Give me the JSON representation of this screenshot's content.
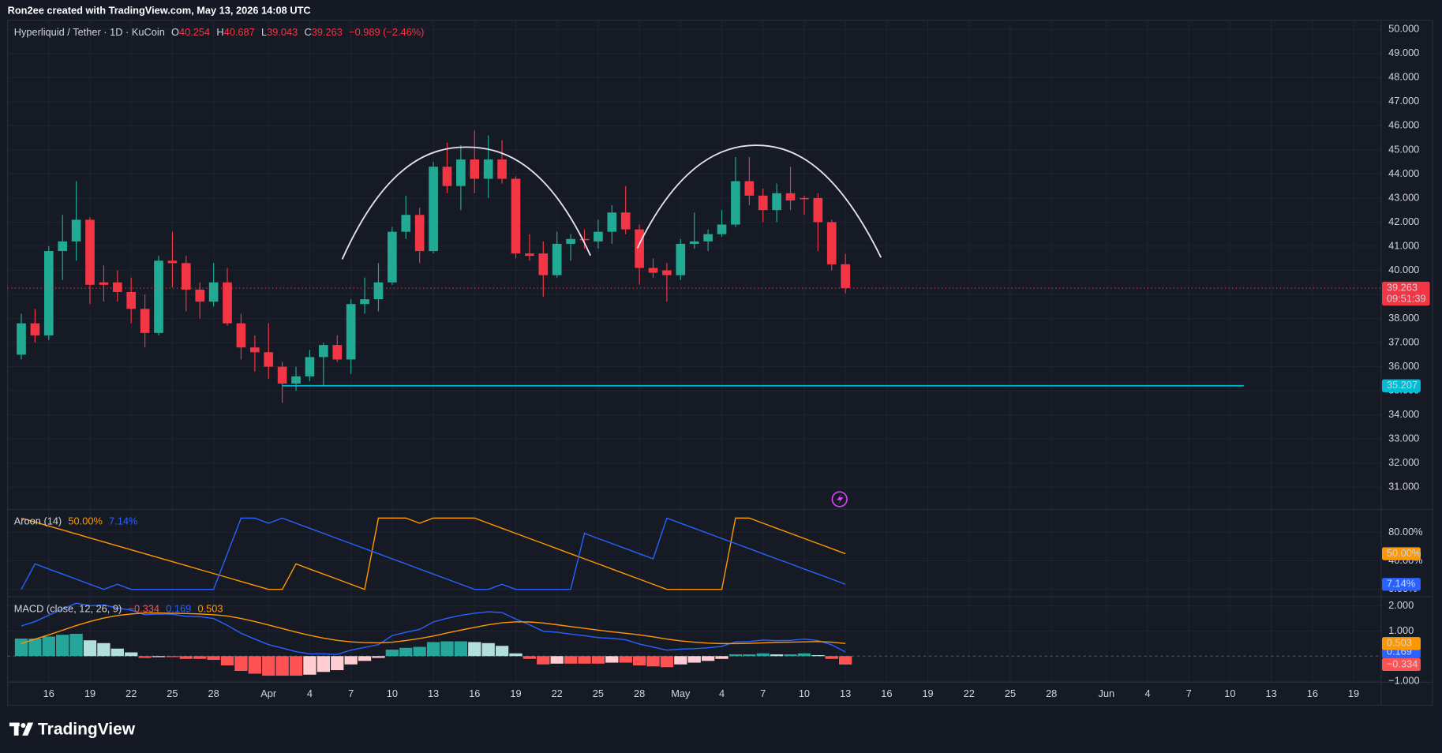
{
  "attribution": "Ron2ee created with TradingView.com, May 13, 2026 14:08 UTC",
  "brand": "TradingView",
  "chart_data": [
    {
      "type": "candlestick",
      "title": "Hyperliquid / Tether · 1D · KuCoin",
      "ohlc_labels": [
        "O",
        "H",
        "L",
        "C"
      ],
      "change": "−0.989 (−2.46%)",
      "countdown": "09:51:39",
      "up_color": "#22ab94",
      "down_color": "#f23645",
      "grid": true,
      "x": [
        "2026-03-14",
        "2026-03-15",
        "2026-03-16",
        "2026-03-17",
        "2026-03-18",
        "2026-03-19",
        "2026-03-20",
        "2026-03-21",
        "2026-03-22",
        "2026-03-23",
        "2026-03-24",
        "2026-03-25",
        "2026-03-26",
        "2026-03-27",
        "2026-03-28",
        "2026-03-29",
        "2026-03-30",
        "2026-03-31",
        "2026-04-01",
        "2026-04-02",
        "2026-04-03",
        "2026-04-04",
        "2026-04-05",
        "2026-04-06",
        "2026-04-07",
        "2026-04-08",
        "2026-04-09",
        "2026-04-10",
        "2026-04-11",
        "2026-04-12",
        "2026-04-13",
        "2026-04-14",
        "2026-04-15",
        "2026-04-16",
        "2026-04-17",
        "2026-04-18",
        "2026-04-19",
        "2026-04-20",
        "2026-04-21",
        "2026-04-22",
        "2026-04-23",
        "2026-04-24",
        "2026-04-25",
        "2026-04-26",
        "2026-04-27",
        "2026-04-28",
        "2026-04-29",
        "2026-04-30",
        "2026-05-01",
        "2026-05-02",
        "2026-05-03",
        "2026-05-04",
        "2026-05-05",
        "2026-05-06",
        "2026-05-07",
        "2026-05-08",
        "2026-05-09",
        "2026-05-10",
        "2026-05-11",
        "2026-05-12",
        "2026-05-13"
      ],
      "open": [
        36.5,
        37.8,
        37.3,
        40.8,
        41.2,
        42.1,
        39.5,
        39.5,
        39.1,
        38.4,
        37.4,
        40.4,
        40.3,
        39.2,
        38.7,
        39.5,
        37.8,
        36.8,
        36.6,
        36.0,
        35.3,
        35.6,
        36.4,
        36.9,
        36.3,
        38.6,
        38.8,
        39.5,
        41.6,
        42.3,
        40.8,
        44.3,
        43.5,
        44.6,
        43.8,
        44.6,
        43.8,
        40.7,
        40.7,
        39.8,
        41.1,
        41.3,
        41.2,
        41.6,
        42.4,
        41.7,
        40.1,
        40.0,
        39.8,
        41.1,
        41.2,
        41.5,
        41.9,
        43.7,
        43.1,
        42.5,
        43.2,
        43.0,
        43.0,
        42.0,
        40.254
      ],
      "high": [
        38.2,
        38.4,
        41.0,
        42.3,
        43.7,
        42.2,
        40.2,
        40.0,
        39.7,
        39.0,
        40.6,
        41.6,
        40.6,
        39.5,
        40.3,
        40.1,
        38.2,
        37.3,
        37.8,
        36.2,
        36.0,
        36.7,
        37.0,
        37.3,
        38.8,
        39.7,
        40.3,
        41.8,
        43.1,
        42.6,
        44.5,
        45.3,
        45.2,
        45.8,
        45.6,
        45.4,
        43.9,
        41.5,
        41.2,
        41.6,
        41.5,
        41.7,
        42.1,
        42.7,
        43.5,
        41.9,
        40.5,
        40.3,
        41.3,
        42.4,
        41.7,
        42.5,
        44.7,
        44.7,
        43.4,
        43.6,
        44.3,
        43.1,
        43.2,
        42.1,
        40.687
      ],
      "low": [
        36.3,
        37.0,
        37.1,
        39.6,
        40.4,
        38.6,
        38.7,
        38.7,
        37.8,
        36.8,
        37.3,
        39.3,
        38.3,
        38.0,
        38.5,
        37.7,
        36.3,
        35.8,
        35.5,
        34.5,
        35.0,
        35.4,
        35.2,
        36.2,
        35.7,
        38.2,
        38.3,
        39.4,
        41.3,
        40.3,
        40.7,
        43.2,
        42.5,
        43.2,
        43.0,
        43.6,
        40.5,
        40.4,
        38.9,
        39.7,
        40.4,
        40.9,
        40.9,
        41.1,
        41.5,
        39.4,
        39.7,
        38.7,
        39.6,
        40.9,
        40.8,
        41.4,
        41.8,
        42.7,
        42.0,
        42.0,
        42.5,
        42.3,
        40.8,
        40.0,
        39.043
      ],
      "close": [
        37.8,
        37.3,
        40.8,
        41.2,
        42.1,
        39.4,
        39.4,
        39.1,
        38.4,
        37.4,
        40.4,
        40.3,
        39.2,
        38.7,
        39.5,
        37.8,
        36.8,
        36.6,
        36.0,
        35.3,
        35.6,
        36.4,
        36.9,
        36.3,
        38.6,
        38.8,
        39.5,
        41.6,
        42.3,
        40.8,
        44.3,
        43.5,
        44.6,
        43.8,
        44.6,
        43.8,
        40.7,
        40.6,
        39.8,
        41.1,
        41.3,
        41.25,
        41.6,
        42.4,
        41.7,
        40.1,
        39.9,
        39.8,
        41.1,
        41.2,
        41.5,
        41.9,
        43.7,
        43.1,
        42.5,
        43.2,
        42.9,
        42.95,
        42.0,
        40.25,
        39.263
      ],
      "xlim": [
        "2026-03-13",
        "2026-06-21"
      ],
      "xticks": [
        {
          "value": "2026-03-16",
          "label": "16"
        },
        {
          "value": "2026-03-19",
          "label": "19"
        },
        {
          "value": "2026-03-22",
          "label": "22"
        },
        {
          "value": "2026-03-25",
          "label": "25"
        },
        {
          "value": "2026-03-28",
          "label": "28"
        },
        {
          "value": "2026-04-01",
          "label": "Apr"
        },
        {
          "value": "2026-04-04",
          "label": "4"
        },
        {
          "value": "2026-04-07",
          "label": "7"
        },
        {
          "value": "2026-04-10",
          "label": "10"
        },
        {
          "value": "2026-04-13",
          "label": "13"
        },
        {
          "value": "2026-04-16",
          "label": "16"
        },
        {
          "value": "2026-04-19",
          "label": "19"
        },
        {
          "value": "2026-04-22",
          "label": "22"
        },
        {
          "value": "2026-04-25",
          "label": "25"
        },
        {
          "value": "2026-04-28",
          "label": "28"
        },
        {
          "value": "2026-05-01",
          "label": "May"
        },
        {
          "value": "2026-05-04",
          "label": "4"
        },
        {
          "value": "2026-05-07",
          "label": "7"
        },
        {
          "value": "2026-05-10",
          "label": "10"
        },
        {
          "value": "2026-05-13",
          "label": "13"
        },
        {
          "value": "2026-05-16",
          "label": "16"
        },
        {
          "value": "2026-05-19",
          "label": "19"
        },
        {
          "value": "2026-05-22",
          "label": "22"
        },
        {
          "value": "2026-05-25",
          "label": "25"
        },
        {
          "value": "2026-05-28",
          "label": "28"
        },
        {
          "value": "2026-06-01",
          "label": "Jun"
        },
        {
          "value": "2026-06-04",
          "label": "4"
        },
        {
          "value": "2026-06-07",
          "label": "7"
        },
        {
          "value": "2026-06-10",
          "label": "10"
        },
        {
          "value": "2026-06-13",
          "label": "13"
        },
        {
          "value": "2026-06-16",
          "label": "16"
        },
        {
          "value": "2026-06-19",
          "label": "19"
        }
      ],
      "ylim": [
        30.08,
        50.38
      ],
      "yticks": [
        {
          "value": 31,
          "label": "31.000"
        },
        {
          "value": 32,
          "label": "32.000"
        },
        {
          "value": 33,
          "label": "33.000"
        },
        {
          "value": 34,
          "label": "34.000"
        },
        {
          "value": 35,
          "label": "35.000"
        },
        {
          "value": 36,
          "label": "36.000"
        },
        {
          "value": 37,
          "label": "37.000"
        },
        {
          "value": 38,
          "label": "38.000"
        },
        {
          "value": 39,
          "label": "39.000"
        },
        {
          "value": 40,
          "label": "40.000"
        },
        {
          "value": 41,
          "label": "41.000"
        },
        {
          "value": 42,
          "label": "42.000"
        },
        {
          "value": 43,
          "label": "43.000"
        },
        {
          "value": 44,
          "label": "44.000"
        },
        {
          "value": 45,
          "label": "45.000"
        },
        {
          "value": 46,
          "label": "46.000"
        },
        {
          "value": 47,
          "label": "47.000"
        },
        {
          "value": 48,
          "label": "48.000"
        },
        {
          "value": 49,
          "label": "49.000"
        },
        {
          "value": 50,
          "label": "50.000"
        }
      ],
      "hline": {
        "value": 35.207,
        "from": "2026-04-02",
        "to": "2026-06-11",
        "color": "#00bcd4"
      }
    },
    {
      "type": "line",
      "title": "Aroon (14)",
      "grid": true,
      "ylim": [
        -10.3,
        112.3
      ],
      "yticks": [
        {
          "value": 80,
          "label": "80.00%"
        },
        {
          "value": 40,
          "label": "40.00%"
        },
        {
          "value": 0,
          "label": "0.00%"
        }
      ],
      "series": [
        {
          "color": "#ff9800",
          "values": [
            100,
            94.44,
            88.89,
            83.33,
            77.78,
            72.22,
            66.67,
            61.11,
            55.56,
            50,
            44.44,
            38.89,
            33.33,
            27.78,
            22.22,
            16.67,
            11.11,
            5.56,
            0,
            0,
            35.71,
            28.57,
            21.43,
            14.29,
            7.14,
            0,
            100,
            100,
            100,
            92.86,
            100,
            100,
            100,
            100,
            92.86,
            85.71,
            78.57,
            71.43,
            64.29,
            57.14,
            50,
            42.86,
            35.71,
            28.57,
            21.43,
            14.29,
            7.14,
            0,
            0,
            0,
            0,
            0,
            100,
            100,
            92.86,
            85.71,
            78.57,
            71.43,
            64.29,
            57.14,
            50
          ],
          "value_labels": [
            null,
            null,
            null,
            null,
            null,
            null,
            null,
            null,
            null,
            null,
            null,
            null,
            null,
            null,
            null,
            null,
            null,
            null,
            null,
            null,
            null,
            null,
            null,
            null,
            null,
            null,
            null,
            null,
            null,
            null,
            null,
            null,
            null,
            null,
            null,
            null,
            null,
            null,
            null,
            null,
            null,
            null,
            null,
            null,
            null,
            null,
            null,
            null,
            null,
            null,
            null,
            null,
            null,
            null,
            null,
            null,
            null,
            null,
            null,
            null,
            "50.00%"
          ]
        },
        {
          "color": "#2962ff",
          "values": [
            0,
            35.71,
            28.57,
            21.43,
            14.29,
            7.14,
            0,
            7.14,
            0,
            0,
            0,
            0,
            0,
            0,
            0,
            50,
            100,
            100,
            92.86,
            100,
            92.86,
            85.71,
            78.57,
            71.43,
            64.29,
            57.14,
            50,
            42.86,
            35.71,
            28.57,
            21.43,
            14.29,
            7.14,
            0,
            0,
            7.14,
            0,
            0,
            0,
            0,
            0,
            78.57,
            71.43,
            64.29,
            57.14,
            50,
            42.86,
            100,
            92.86,
            85.71,
            78.57,
            71.43,
            64.29,
            57.14,
            50,
            42.86,
            35.71,
            28.57,
            21.43,
            14.29,
            7.14
          ],
          "value_labels": [
            null,
            null,
            null,
            null,
            null,
            null,
            null,
            null,
            null,
            null,
            null,
            null,
            null,
            null,
            null,
            null,
            null,
            null,
            null,
            null,
            null,
            null,
            null,
            null,
            null,
            null,
            null,
            null,
            null,
            null,
            null,
            null,
            null,
            null,
            null,
            null,
            null,
            null,
            null,
            null,
            null,
            null,
            null,
            null,
            null,
            null,
            null,
            null,
            null,
            null,
            null,
            null,
            null,
            null,
            null,
            null,
            null,
            null,
            null,
            null,
            "7.14%"
          ]
        }
      ]
    },
    {
      "type": "macd",
      "title": "MACD (close, 12, 26, 9)",
      "grid": true,
      "ylim": [
        -1.04,
        2.37
      ],
      "yticks": [
        {
          "value": 2,
          "label": "2.000"
        },
        {
          "value": 1,
          "label": "1.000"
        },
        {
          "value": -1,
          "label": "−1.000"
        }
      ],
      "series": [
        {
          "kind": "bar",
          "colors": [
            "#26a69a",
            "#b2dfdb",
            "#ffcdd2",
            "#ff5252"
          ],
          "values": [
            0.7,
            0.7,
            0.78,
            0.85,
            0.89,
            0.63,
            0.52,
            0.3,
            0.15,
            -0.07,
            -0.04,
            -0.04,
            -0.11,
            -0.11,
            -0.15,
            -0.37,
            -0.59,
            -0.7,
            -0.78,
            -0.78,
            -0.78,
            -0.74,
            -0.63,
            -0.56,
            -0.33,
            -0.19,
            -0.07,
            0.26,
            0.33,
            0.37,
            0.56,
            0.59,
            0.59,
            0.56,
            0.52,
            0.41,
            0.11,
            -0.11,
            -0.33,
            -0.3,
            -0.3,
            -0.3,
            -0.3,
            -0.26,
            -0.26,
            -0.37,
            -0.41,
            -0.44,
            -0.33,
            -0.26,
            -0.19,
            -0.11,
            0.07,
            0.07,
            0.11,
            0.07,
            0.07,
            0.11,
            0.04,
            -0.11,
            -0.334
          ],
          "value_labels": [
            null,
            null,
            null,
            null,
            null,
            null,
            null,
            null,
            null,
            null,
            null,
            null,
            null,
            null,
            null,
            null,
            null,
            null,
            null,
            null,
            null,
            null,
            null,
            null,
            null,
            null,
            null,
            null,
            null,
            null,
            null,
            null,
            null,
            null,
            null,
            null,
            null,
            null,
            null,
            null,
            null,
            null,
            null,
            null,
            null,
            null,
            null,
            null,
            null,
            null,
            null,
            null,
            null,
            null,
            null,
            null,
            null,
            null,
            null,
            null,
            "−0.334"
          ]
        },
        {
          "kind": "line",
          "color": "#2962ff",
          "values": [
            1.2,
            1.38,
            1.63,
            1.88,
            2.11,
            2.01,
            2.04,
            1.92,
            1.83,
            1.65,
            1.68,
            1.67,
            1.59,
            1.57,
            1.5,
            1.23,
            0.91,
            0.68,
            0.46,
            0.32,
            0.18,
            0.09,
            0.09,
            0.07,
            0.24,
            0.35,
            0.46,
            0.82,
            0.95,
            1.07,
            1.36,
            1.51,
            1.63,
            1.71,
            1.77,
            1.74,
            1.48,
            1.25,
            0.99,
            0.95,
            0.88,
            0.81,
            0.74,
            0.71,
            0.65,
            0.48,
            0.36,
            0.24,
            0.28,
            0.3,
            0.33,
            0.39,
            0.57,
            0.58,
            0.64,
            0.62,
            0.63,
            0.68,
            0.62,
            0.45,
            0.169
          ]
        },
        {
          "kind": "line",
          "color": "#ff9800",
          "values": [
            0.5,
            0.68,
            0.85,
            1.03,
            1.22,
            1.38,
            1.52,
            1.62,
            1.68,
            1.72,
            1.72,
            1.71,
            1.7,
            1.68,
            1.65,
            1.6,
            1.5,
            1.38,
            1.24,
            1.1,
            0.96,
            0.83,
            0.72,
            0.63,
            0.57,
            0.54,
            0.53,
            0.56,
            0.62,
            0.7,
            0.8,
            0.92,
            1.04,
            1.15,
            1.25,
            1.33,
            1.37,
            1.36,
            1.32,
            1.25,
            1.18,
            1.11,
            1.04,
            0.97,
            0.91,
            0.85,
            0.77,
            0.68,
            0.61,
            0.56,
            0.52,
            0.5,
            0.5,
            0.51,
            0.53,
            0.55,
            0.56,
            0.57,
            0.58,
            0.56,
            0.503
          ]
        }
      ]
    }
  ]
}
